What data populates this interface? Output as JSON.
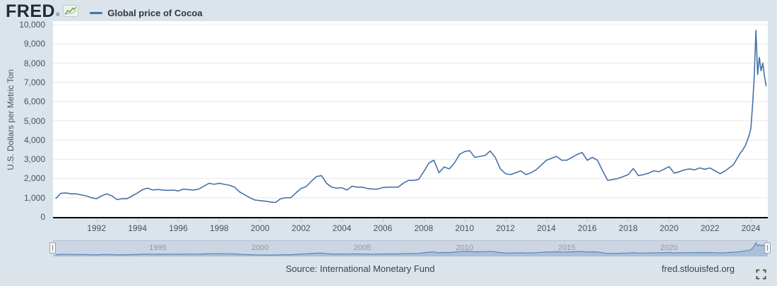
{
  "header": {
    "logo_text": "FRED",
    "logo_registered": "®",
    "legend": {
      "label": "Global price of Cocoa",
      "color": "#4572a7"
    }
  },
  "chart_data": {
    "type": "line",
    "title": "Global price of Cocoa",
    "xlabel": "",
    "ylabel": "U.S. Dollars per Metric Ton",
    "ylim": [
      0,
      10000
    ],
    "xlim": [
      1989.87,
      2024.83
    ],
    "grid": true,
    "legend_position": "top-left",
    "line_color": "#4572a7",
    "yticks": [
      {
        "v": 0,
        "label": "0"
      },
      {
        "v": 1000,
        "label": "1,000"
      },
      {
        "v": 2000,
        "label": "2,000"
      },
      {
        "v": 3000,
        "label": "3,000"
      },
      {
        "v": 4000,
        "label": "4,000"
      },
      {
        "v": 5000,
        "label": "5,000"
      },
      {
        "v": 6000,
        "label": "6,000"
      },
      {
        "v": 7000,
        "label": "7,000"
      },
      {
        "v": 8000,
        "label": "8,000"
      },
      {
        "v": 9000,
        "label": "9,000"
      },
      {
        "v": 10000,
        "label": "10,000"
      }
    ],
    "xticks": [
      1992,
      1994,
      1996,
      1998,
      2000,
      2002,
      2004,
      2006,
      2008,
      2010,
      2012,
      2014,
      2016,
      2018,
      2020,
      2022,
      2024
    ],
    "series": [
      {
        "name": "Global price of Cocoa",
        "units": "U.S. Dollars per Metric Ton",
        "points": [
          [
            1990,
            950
          ],
          [
            1990.25,
            1230
          ],
          [
            1990.5,
            1250
          ],
          [
            1990.75,
            1200
          ],
          [
            1991,
            1200
          ],
          [
            1991.25,
            1150
          ],
          [
            1991.5,
            1100
          ],
          [
            1991.75,
            1000
          ],
          [
            1992,
            950
          ],
          [
            1992.25,
            1100
          ],
          [
            1992.5,
            1200
          ],
          [
            1992.75,
            1100
          ],
          [
            1993,
            900
          ],
          [
            1993.25,
            950
          ],
          [
            1993.5,
            950
          ],
          [
            1993.75,
            1100
          ],
          [
            1994,
            1250
          ],
          [
            1994.25,
            1420
          ],
          [
            1994.5,
            1500
          ],
          [
            1994.75,
            1400
          ],
          [
            1995,
            1430
          ],
          [
            1995.25,
            1400
          ],
          [
            1995.5,
            1380
          ],
          [
            1995.75,
            1400
          ],
          [
            1996,
            1350
          ],
          [
            1996.25,
            1450
          ],
          [
            1996.5,
            1420
          ],
          [
            1996.75,
            1400
          ],
          [
            1997,
            1450
          ],
          [
            1997.25,
            1600
          ],
          [
            1997.5,
            1750
          ],
          [
            1997.75,
            1700
          ],
          [
            1998,
            1750
          ],
          [
            1998.25,
            1700
          ],
          [
            1998.5,
            1650
          ],
          [
            1998.75,
            1550
          ],
          [
            1999,
            1300
          ],
          [
            1999.25,
            1150
          ],
          [
            1999.5,
            1000
          ],
          [
            1999.75,
            880
          ],
          [
            2000,
            850
          ],
          [
            2000.25,
            820
          ],
          [
            2000.5,
            780
          ],
          [
            2000.75,
            750
          ],
          [
            2001,
            950
          ],
          [
            2001.25,
            1000
          ],
          [
            2001.5,
            1000
          ],
          [
            2001.75,
            1250
          ],
          [
            2002,
            1480
          ],
          [
            2002.25,
            1580
          ],
          [
            2002.5,
            1850
          ],
          [
            2002.75,
            2100
          ],
          [
            2003,
            2150
          ],
          [
            2003.25,
            1750
          ],
          [
            2003.5,
            1550
          ],
          [
            2003.75,
            1500
          ],
          [
            2004,
            1520
          ],
          [
            2004.25,
            1400
          ],
          [
            2004.5,
            1600
          ],
          [
            2004.75,
            1550
          ],
          [
            2005,
            1550
          ],
          [
            2005.25,
            1480
          ],
          [
            2005.5,
            1450
          ],
          [
            2005.75,
            1450
          ],
          [
            2006,
            1530
          ],
          [
            2006.25,
            1550
          ],
          [
            2006.5,
            1550
          ],
          [
            2006.75,
            1550
          ],
          [
            2007,
            1750
          ],
          [
            2007.25,
            1900
          ],
          [
            2007.5,
            1900
          ],
          [
            2007.75,
            1950
          ],
          [
            2008,
            2350
          ],
          [
            2008.25,
            2800
          ],
          [
            2008.5,
            2950
          ],
          [
            2008.75,
            2300
          ],
          [
            2009,
            2600
          ],
          [
            2009.25,
            2500
          ],
          [
            2009.5,
            2800
          ],
          [
            2009.75,
            3250
          ],
          [
            2010,
            3400
          ],
          [
            2010.25,
            3450
          ],
          [
            2010.5,
            3100
          ],
          [
            2010.75,
            3150
          ],
          [
            2011,
            3200
          ],
          [
            2011.25,
            3430
          ],
          [
            2011.5,
            3100
          ],
          [
            2011.75,
            2500
          ],
          [
            2012,
            2250
          ],
          [
            2012.25,
            2200
          ],
          [
            2012.5,
            2300
          ],
          [
            2012.75,
            2400
          ],
          [
            2013,
            2200
          ],
          [
            2013.25,
            2300
          ],
          [
            2013.5,
            2450
          ],
          [
            2013.75,
            2700
          ],
          [
            2014,
            2950
          ],
          [
            2014.25,
            3050
          ],
          [
            2014.5,
            3150
          ],
          [
            2014.75,
            2950
          ],
          [
            2015,
            2950
          ],
          [
            2015.25,
            3100
          ],
          [
            2015.5,
            3250
          ],
          [
            2015.75,
            3350
          ],
          [
            2016,
            2950
          ],
          [
            2016.25,
            3100
          ],
          [
            2016.5,
            2950
          ],
          [
            2016.75,
            2400
          ],
          [
            2017,
            1900
          ],
          [
            2017.25,
            1950
          ],
          [
            2017.5,
            2000
          ],
          [
            2017.75,
            2100
          ],
          [
            2018,
            2200
          ],
          [
            2018.25,
            2520
          ],
          [
            2018.5,
            2150
          ],
          [
            2018.75,
            2200
          ],
          [
            2019,
            2280
          ],
          [
            2019.25,
            2400
          ],
          [
            2019.5,
            2350
          ],
          [
            2019.75,
            2480
          ],
          [
            2020,
            2620
          ],
          [
            2020.25,
            2280
          ],
          [
            2020.5,
            2350
          ],
          [
            2020.75,
            2450
          ],
          [
            2021,
            2500
          ],
          [
            2021.25,
            2450
          ],
          [
            2021.5,
            2550
          ],
          [
            2021.75,
            2480
          ],
          [
            2022,
            2550
          ],
          [
            2022.25,
            2400
          ],
          [
            2022.5,
            2250
          ],
          [
            2022.75,
            2400
          ],
          [
            2023,
            2600
          ],
          [
            2023.083,
            2650
          ],
          [
            2023.167,
            2750
          ],
          [
            2023.25,
            2900
          ],
          [
            2023.333,
            3050
          ],
          [
            2023.417,
            3200
          ],
          [
            2023.5,
            3350
          ],
          [
            2023.583,
            3450
          ],
          [
            2023.667,
            3600
          ],
          [
            2023.75,
            3750
          ],
          [
            2023.833,
            4000
          ],
          [
            2023.917,
            4250
          ],
          [
            2024,
            4600
          ],
          [
            2024.083,
            5800
          ],
          [
            2024.167,
            7300
          ],
          [
            2024.25,
            9700
          ],
          [
            2024.333,
            7400
          ],
          [
            2024.417,
            8300
          ],
          [
            2024.5,
            7600
          ],
          [
            2024.583,
            8000
          ],
          [
            2024.667,
            7300
          ],
          [
            2024.75,
            6800
          ]
        ]
      }
    ],
    "navigator": {
      "labels": [
        1995,
        2000,
        2005,
        2010,
        2015,
        2020
      ],
      "fill_color": "#aabfd9",
      "line_color": "#5f86b5",
      "track_color": "#cbd5e3"
    }
  },
  "footer": {
    "source": "Source: International Monetary Fund",
    "site": "fred.stlouisfed.org"
  },
  "icons": {
    "logo_sparkline": "sparkline-icon",
    "fullscreen": "fullscreen-icon"
  },
  "colors": {
    "page_background": "#dbe3eb",
    "plot_background": "#ffffff",
    "gridline": "#e8e8e8",
    "axis": "#000000",
    "tick_text": "#49525c"
  }
}
